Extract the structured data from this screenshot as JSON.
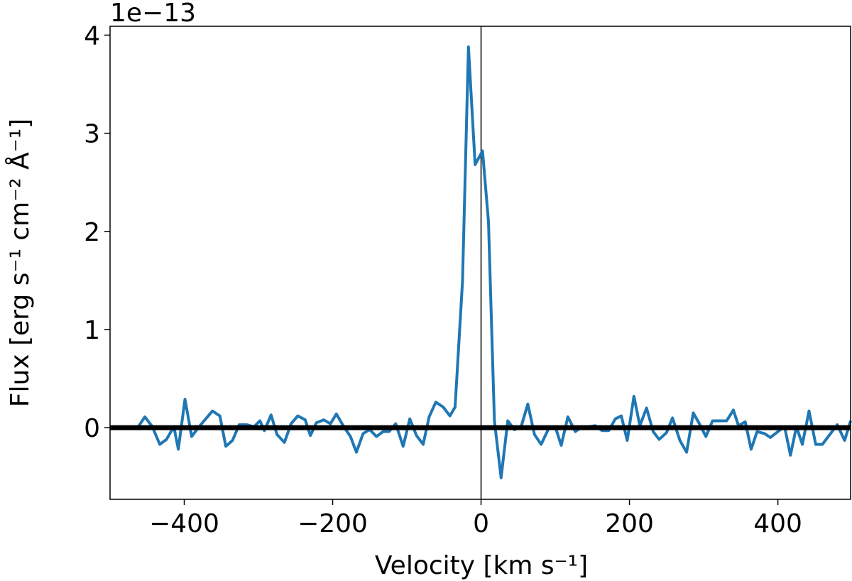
{
  "chart_data": {
    "type": "line",
    "offset_text": "1e−13",
    "x_label": "Velocity [km s⁻¹]",
    "y_label": "Flux [erg s⁻¹ cm⁻² Å⁻¹]",
    "x": [
      -462,
      -453,
      -443,
      -433,
      -424,
      -414,
      -408,
      -399,
      -390,
      -380,
      -371,
      -362,
      -352,
      -344,
      -335,
      -326,
      -316,
      -306,
      -298,
      -292,
      -283,
      -275,
      -265,
      -256,
      -247,
      -237,
      -230,
      -222,
      -212,
      -203,
      -195,
      -185,
      -176,
      -168,
      -159,
      -150,
      -141,
      -132,
      -124,
      -115,
      -105,
      -96,
      -87,
      -78,
      -70,
      -61,
      -51,
      -42,
      -35,
      -25,
      -17,
      -8,
      2,
      10,
      18,
      27,
      36,
      45,
      54,
      63,
      72,
      81,
      91,
      100,
      108,
      117,
      127,
      136,
      145,
      154,
      163,
      172,
      181,
      189,
      197,
      206,
      214,
      223,
      232,
      240,
      250,
      258,
      268,
      277,
      286,
      295,
      303,
      312,
      321,
      331,
      340,
      347,
      356,
      364,
      372,
      382,
      390,
      400,
      409,
      417,
      425,
      433,
      442,
      451,
      460,
      470,
      480,
      490,
      498
    ],
    "series": [
      {
        "name": "Flux",
        "color": "#1f77b4",
        "values": [
          0.01,
          0.11,
          0.01,
          -0.17,
          -0.12,
          0.01,
          -0.22,
          0.29,
          -0.09,
          0.01,
          0.09,
          0.17,
          0.12,
          -0.19,
          -0.13,
          0.03,
          0.03,
          0.01,
          0.07,
          -0.03,
          0.13,
          -0.07,
          -0.15,
          0.04,
          0.12,
          0.08,
          -0.08,
          0.05,
          0.08,
          0.04,
          0.14,
          0.01,
          -0.09,
          -0.25,
          -0.06,
          -0.02,
          -0.09,
          -0.04,
          -0.04,
          0.04,
          -0.19,
          0.09,
          -0.08,
          -0.17,
          0.11,
          0.26,
          0.21,
          0.12,
          0.21,
          1.49,
          3.88,
          2.68,
          2.82,
          2.1,
          0.07,
          -0.51,
          0.07,
          -0.02,
          0.01,
          0.24,
          -0.07,
          -0.17,
          -0.01,
          0.01,
          -0.18,
          0.11,
          -0.04,
          0.01,
          0.01,
          0.02,
          -0.03,
          -0.03,
          0.09,
          0.12,
          -0.13,
          0.32,
          0.02,
          0.2,
          -0.04,
          -0.12,
          -0.05,
          0.1,
          -0.13,
          -0.25,
          0.15,
          0.03,
          -0.09,
          0.07,
          0.07,
          0.07,
          0.18,
          0.02,
          0.06,
          -0.22,
          -0.04,
          -0.06,
          -0.1,
          -0.04,
          0.01,
          -0.28,
          0.01,
          -0.17,
          0.17,
          -0.17,
          -0.17,
          -0.07,
          0.03,
          -0.13,
          0.07
        ]
      }
    ],
    "xlim": [
      -500,
      498
    ],
    "ylim": [
      -0.73,
      4.09
    ],
    "xticks": [
      {
        "value": -400,
        "label": "−400"
      },
      {
        "value": -200,
        "label": "−200"
      },
      0,
      200,
      400
    ],
    "yticks": [
      0,
      1,
      2,
      3,
      4
    ],
    "hline": 0,
    "vline": 0,
    "grid": false
  }
}
